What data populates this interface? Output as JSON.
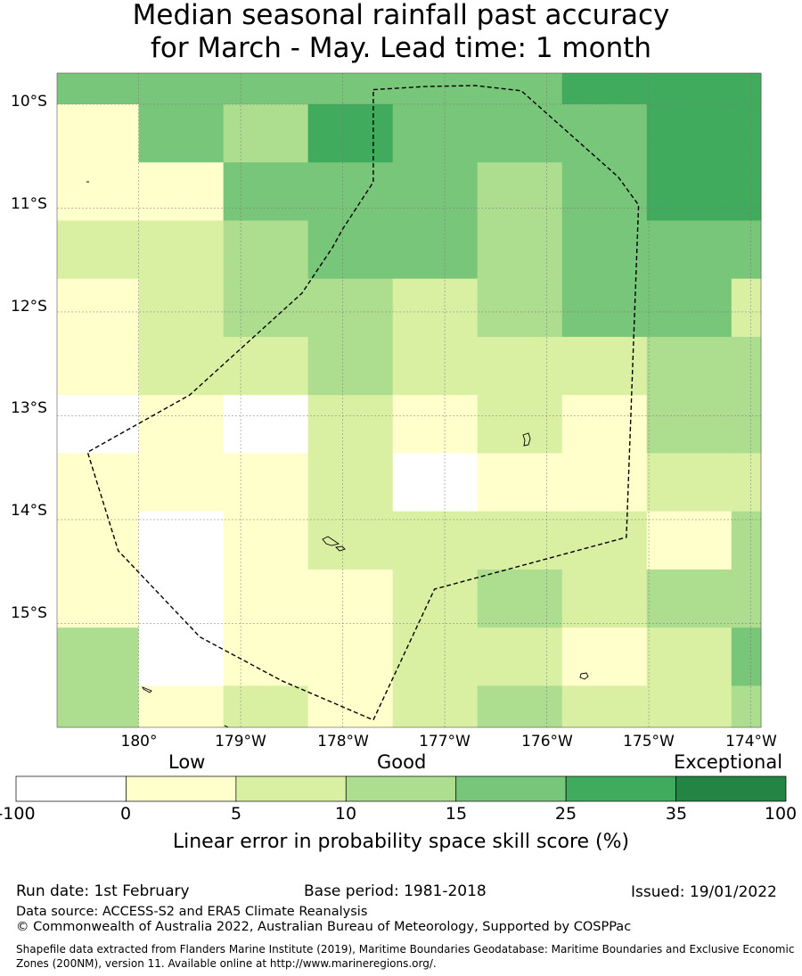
{
  "title": {
    "line1": "Median seasonal rainfall past accuracy",
    "line2": "for March - May. Lead time: 1 month"
  },
  "map": {
    "lon_range": [
      179.2,
      186.1
    ],
    "lat_range": [
      -16.0,
      -9.7
    ],
    "lat_ticks": [
      "10°S",
      "11°S",
      "12°S",
      "13°S",
      "14°S",
      "15°S"
    ],
    "lon_ticks": [
      "180°",
      "179°W",
      "178°W",
      "177°W",
      "176°W",
      "175°W",
      "174°W"
    ],
    "grid_row_tops": [
      -9.7,
      -10.0,
      -10.56,
      -11.12,
      -11.68,
      -12.24,
      -12.8,
      -13.36,
      -13.92,
      -14.48,
      -15.04,
      -15.6
    ],
    "grid_col_lefts": [
      179.2,
      180.0,
      180.83,
      181.66,
      182.49,
      183.32,
      184.15,
      184.98,
      185.81
    ],
    "cell_bins": [
      [
        4,
        4,
        4,
        4,
        4,
        4,
        5,
        5,
        5
      ],
      [
        1,
        4,
        3,
        5,
        4,
        4,
        4,
        5,
        5
      ],
      [
        1,
        1,
        4,
        4,
        4,
        3,
        4,
        5,
        5
      ],
      [
        2,
        2,
        3,
        4,
        4,
        3,
        4,
        4,
        4
      ],
      [
        1,
        2,
        3,
        3,
        2,
        3,
        4,
        4,
        2
      ],
      [
        1,
        2,
        2,
        3,
        2,
        2,
        2,
        3,
        3
      ],
      [
        0,
        1,
        0,
        2,
        1,
        2,
        1,
        3,
        3
      ],
      [
        1,
        1,
        1,
        2,
        0,
        1,
        1,
        2,
        2
      ],
      [
        1,
        0,
        1,
        2,
        2,
        2,
        2,
        1,
        3
      ],
      [
        1,
        0,
        1,
        1,
        2,
        3,
        2,
        3,
        3
      ],
      [
        3,
        0,
        1,
        1,
        2,
        2,
        1,
        2,
        4
      ],
      [
        3,
        1,
        2,
        1,
        2,
        3,
        2,
        2,
        3
      ]
    ],
    "eez_boundary": [
      [
        182.3,
        -9.86
      ],
      [
        182.8,
        -9.83
      ],
      [
        183.3,
        -9.82
      ],
      [
        183.75,
        -9.87
      ],
      [
        184.7,
        -10.7
      ],
      [
        184.9,
        -10.97
      ],
      [
        184.78,
        -14.17
      ],
      [
        182.9,
        -14.67
      ],
      [
        182.3,
        -15.93
      ],
      [
        181.4,
        -15.55
      ],
      [
        180.6,
        -15.13
      ],
      [
        179.8,
        -14.3
      ],
      [
        179.5,
        -13.35
      ],
      [
        180.5,
        -12.8
      ],
      [
        181.6,
        -11.82
      ],
      [
        181.9,
        -11.38
      ],
      [
        182.0,
        -11.2
      ],
      [
        182.3,
        -10.75
      ],
      [
        182.3,
        -9.86
      ]
    ]
  },
  "colorbar": {
    "categories": [
      "Low",
      "Good",
      "Exceptional"
    ],
    "ticks": [
      "-100",
      "0",
      "5",
      "10",
      "15",
      "25",
      "35",
      "100"
    ],
    "colors": [
      "#ffffff",
      "#ffffcc",
      "#d9f0a3",
      "#addd8e",
      "#78c679",
      "#41ab5d",
      "#238443"
    ],
    "label": "Linear error in probability space skill score (%)"
  },
  "footer": {
    "run_date": "Run date: 1st February",
    "base_period": "Base period: 1981-2018",
    "issued": "Issued: 19/01/2022",
    "data_source": "Data source: ACCESS-S2 and ERA5 Climate Reanalysis",
    "copyright": "© Commonwealth of Australia 2022, Australian Bureau of Meteorology, Supported by COSPPac",
    "shapefile_line1": "Shapefile data extracted from Flanders Marine Institute (2019), Maritime Boundaries Geodatabase: Maritime Boundaries and Exclusive Economic",
    "shapefile_line2": "Zones (200NM), version 11. Available online at http://www.marineregions.org/."
  }
}
